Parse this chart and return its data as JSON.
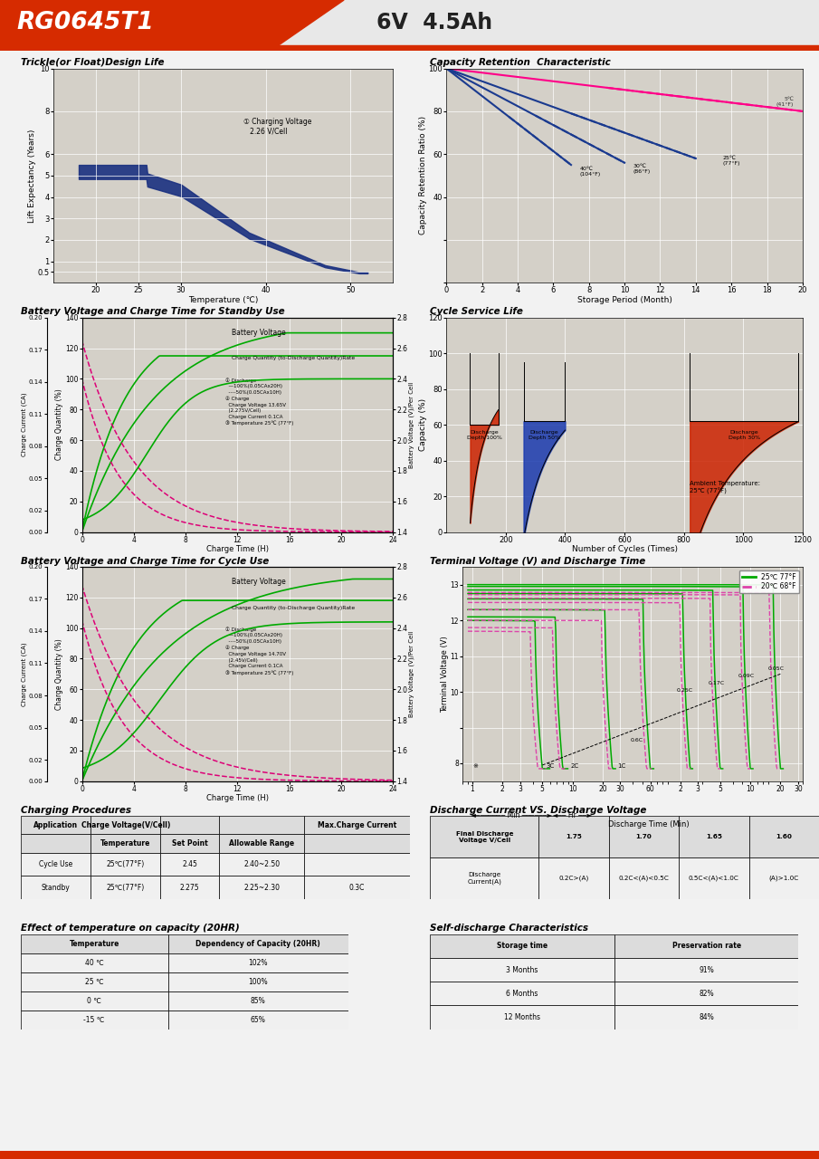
{
  "header_model": "RG0645T1",
  "header_spec": "6V  4.5Ah",
  "header_red": "#d62b00",
  "page_bg": "#f2f2f2",
  "plot_bg": "#d4d0c8",
  "white": "#ffffff",
  "s1_title": "Trickle(or Float)Design Life",
  "s1_xlabel": "Temperature (℃)",
  "s1_ylabel": "Lift Expectancy (Years)",
  "s1_xticks": [
    20,
    25,
    30,
    40,
    50
  ],
  "s1_yticks_labels": [
    "0.5",
    "1",
    "2",
    "3",
    "4",
    "5",
    "6",
    "8",
    "10"
  ],
  "s1_yticks_vals": [
    0.5,
    1,
    2,
    3,
    4,
    5,
    6,
    8,
    10
  ],
  "s1_annotation": "① Charging Voltage\n   2.26 V/Cell",
  "s2_title": "Capacity Retention  Characteristic",
  "s2_xlabel": "Storage Period (Month)",
  "s2_ylabel": "Capacity Retention Ratio (%)",
  "s3_title": "Battery Voltage and Charge Time for Standby Use",
  "s3_xlabel": "Charge Time (H)",
  "s4_title": "Cycle Service Life",
  "s4_xlabel": "Number of Cycles (Times)",
  "s4_ylabel": "Capacity (%)",
  "s5_title": "Battery Voltage and Charge Time for Cycle Use",
  "s5_xlabel": "Charge Time (H)",
  "s6_title": "Terminal Voltage (V) and Discharge Time",
  "s6_xlabel": "Discharge Time (Min)",
  "s6_ylabel": "Terminal Voltage (V)",
  "s7_title": "Charging Procedures",
  "s8_title": "Discharge Current VS. Discharge Voltage",
  "s9_title": "Effect of temperature on capacity (20HR)",
  "s10_title": "Self-discharge Characteristics",
  "green_solid": "#00aa00",
  "pink_dashed": "#dd0077",
  "blue_dark": "#1a3080",
  "curve_blue": "#1a3a8f"
}
